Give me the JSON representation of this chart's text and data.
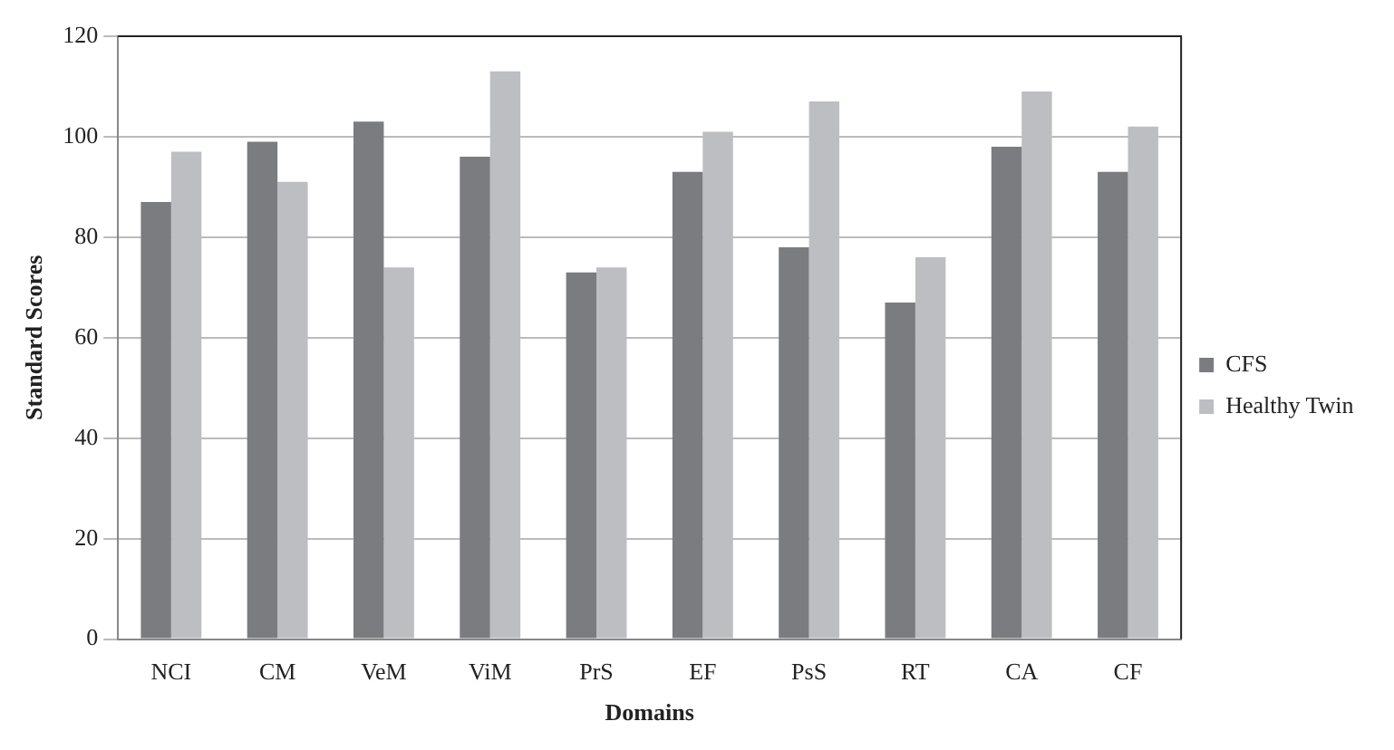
{
  "chart_data": {
    "type": "bar",
    "ylabel": "Standard Scores",
    "xlabel": "Domains",
    "categories": [
      "NCI",
      "CM",
      "VeM",
      "ViM",
      "PrS",
      "EF",
      "PsS",
      "RT",
      "CA",
      "CF"
    ],
    "series": [
      {
        "name": "CFS",
        "color": "#7b7c80",
        "values": [
          87,
          99,
          103,
          96,
          73,
          93,
          78,
          67,
          98,
          93
        ]
      },
      {
        "name": "Healthy Twin",
        "color": "#bdbec2",
        "values": [
          97,
          91,
          74,
          113,
          74,
          101,
          107,
          76,
          109,
          102
        ]
      }
    ],
    "ylim": [
      0,
      120
    ],
    "yticks": [
      0,
      20,
      40,
      60,
      80,
      100,
      120
    ],
    "grid": "y",
    "legend": "right"
  }
}
